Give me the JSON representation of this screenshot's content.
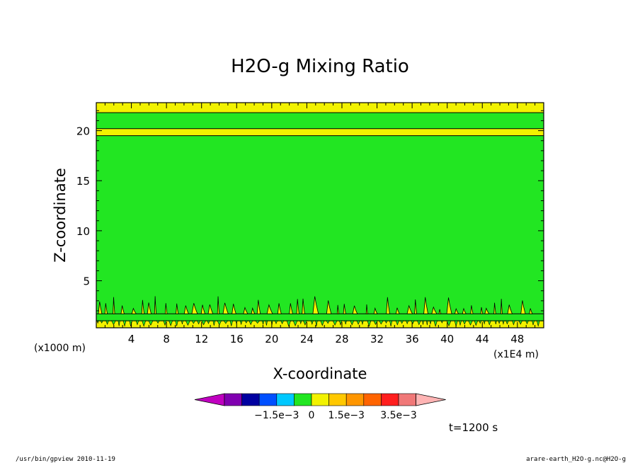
{
  "chart_data": {
    "type": "heatmap",
    "title": "H2O-g Mixing Ratio",
    "xlabel": "X-coordinate",
    "ylabel": "Z-coordinate",
    "x_unit_left": "(x1000 m)",
    "x_unit_right": "(x1E4 m)",
    "x_ticks": [
      4,
      8,
      12,
      16,
      20,
      24,
      28,
      32,
      36,
      40,
      44,
      48
    ],
    "y_ticks": [
      5,
      10,
      15,
      20
    ],
    "xlim": [
      0,
      51
    ],
    "ylim": [
      0.3,
      22.8
    ],
    "regions": [
      {
        "name": "bottom-band",
        "z_range": [
          0.3,
          1.0
        ],
        "level": "positive-small",
        "color": "#f2f200"
      },
      {
        "name": "near-surface-band",
        "z_range": [
          1.0,
          1.7
        ],
        "level": "zero",
        "color": "#22e622"
      },
      {
        "name": "bulk",
        "z_range": [
          1.7,
          19.5
        ],
        "level": "zero",
        "color": "#22e622"
      },
      {
        "name": "band-20km",
        "z_range": [
          19.5,
          20.2
        ],
        "level": "positive-small",
        "color": "#f2f200"
      },
      {
        "name": "gap",
        "z_range": [
          20.2,
          21.8
        ],
        "level": "zero",
        "color": "#22e622"
      },
      {
        "name": "top-band",
        "z_range": [
          21.8,
          22.8
        ],
        "level": "positive-small",
        "color": "#f2f200"
      }
    ],
    "colorbar": {
      "colors": [
        "#c000c0",
        "#8000b0",
        "#0000a0",
        "#0050ff",
        "#00c8ff",
        "#22e622",
        "#f2f200",
        "#ffc800",
        "#ff9600",
        "#ff6400",
        "#ff1e1e",
        "#f07878",
        "#ffb4b4"
      ],
      "tick_labels": [
        "−1.5e−3",
        "0",
        "1.5e−3",
        "3.5e−3"
      ]
    }
  },
  "annotations": {
    "time": "t=1200 s",
    "footer_left": "/usr/bin/gpview  2010-11-19",
    "footer_right": "arare-earth_H2O-g.nc@H2O-g"
  }
}
